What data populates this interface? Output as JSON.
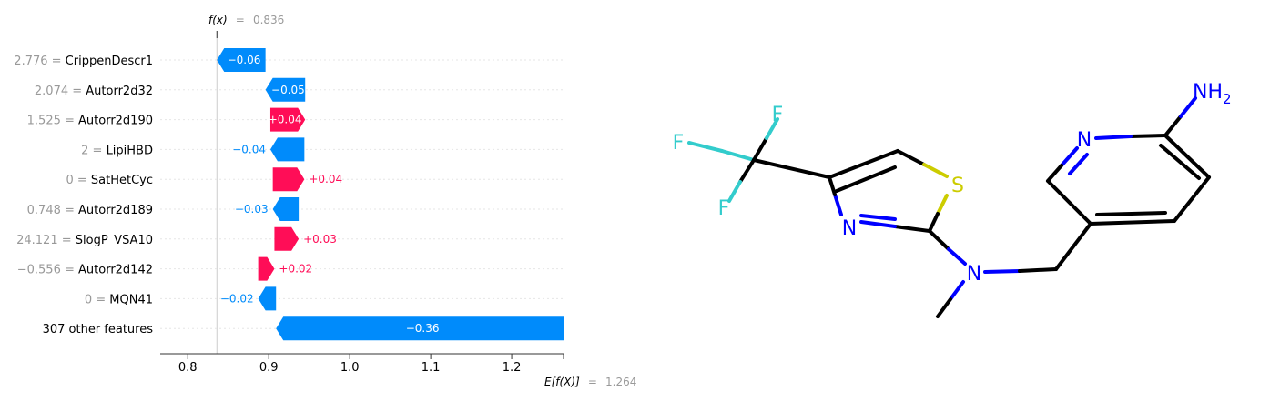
{
  "chart_data": {
    "type": "waterfall",
    "fx_label": "f(x)",
    "fx_value": "0.836",
    "efx_label": "E[f(X)]",
    "efx_value": "1.264",
    "base_value": 1.264,
    "x_ticks": [
      0.8,
      0.9,
      1.0,
      1.1,
      1.2
    ],
    "x_tick_labels": [
      "0.8",
      "0.9",
      "1.0",
      "1.1",
      "1.2"
    ],
    "xlim": [
      0.766,
      1.264
    ],
    "features": [
      {
        "value": "2.776",
        "name": "CrippenDescr1",
        "label": "−0.06",
        "start": 0.896,
        "end": 0.836
      },
      {
        "value": "2.074",
        "name": "Autorr2d32",
        "label": "−0.05",
        "start": 0.945,
        "end": 0.896
      },
      {
        "value": "1.525",
        "name": "Autorr2d190",
        "label": "+0.04",
        "start": 0.902,
        "end": 0.945
      },
      {
        "value": "2",
        "name": "LipiHBD",
        "label": "−0.04",
        "start": 0.944,
        "end": 0.902
      },
      {
        "value": "0",
        "name": "SatHetCyc",
        "label": "+0.04",
        "start": 0.905,
        "end": 0.944
      },
      {
        "value": "0.748",
        "name": "Autorr2d189",
        "label": "−0.03",
        "start": 0.937,
        "end": 0.905
      },
      {
        "value": "24.121",
        "name": "SlogP_VSA10",
        "label": "+0.03",
        "start": 0.907,
        "end": 0.937
      },
      {
        "value": "−0.556",
        "name": "Autorr2d142",
        "label": "+0.02",
        "start": 0.887,
        "end": 0.907
      },
      {
        "value": "0",
        "name": "MQN41",
        "label": "−0.02",
        "start": 0.909,
        "end": 0.887
      },
      {
        "value": "",
        "name": "307 other features",
        "label": "−0.36",
        "start": 1.264,
        "end": 0.909
      }
    ],
    "colors": {
      "positive": "#ff0d57",
      "negative": "#008bfb",
      "value_text": "#999999"
    }
  },
  "molecule": {
    "atoms": {
      "F": "F",
      "S": "S",
      "N": "N",
      "NH": "NH",
      "sub2": "2"
    },
    "colors": {
      "F": "#33cccc",
      "S": "#cccc00",
      "N": "#0000ff",
      "C": "#000000"
    }
  }
}
